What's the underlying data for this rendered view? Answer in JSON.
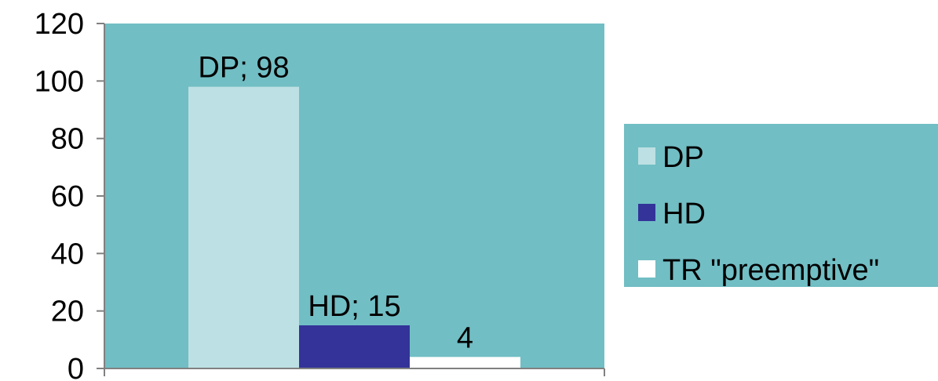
{
  "chart_data": {
    "type": "bar",
    "categories": [
      ""
    ],
    "series": [
      {
        "name": "DP",
        "values": [
          98
        ],
        "color": "#bce0e3",
        "label": "DP; 98"
      },
      {
        "name": "HD",
        "values": [
          15
        ],
        "color": "#333399",
        "label": "HD; 15"
      },
      {
        "name": "TR \"preemptive\"",
        "values": [
          4
        ],
        "color": "#ffffff",
        "label": "4"
      }
    ],
    "y_ticks": [
      "0",
      "20",
      "40",
      "60",
      "80",
      "100",
      "120"
    ],
    "ylim": [
      0,
      120
    ],
    "grid": false,
    "legend": "right",
    "colors": {
      "plot_background": "#71bec4",
      "legend_background": "#71bec4",
      "axis": "#808080"
    }
  }
}
